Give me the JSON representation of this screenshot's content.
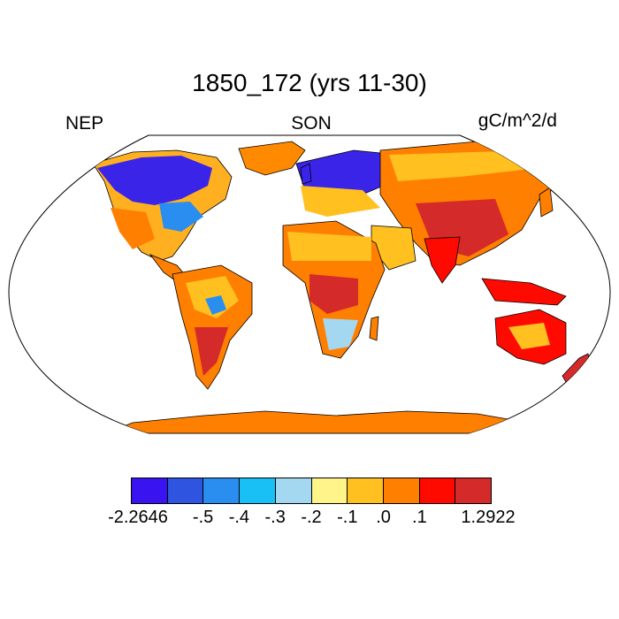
{
  "title": "1850_172 (yrs 11-30)",
  "left_label": "NEP",
  "center_label": "SON",
  "right_label": "gC/m^2/d",
  "colorbar": {
    "colors": [
      "#3a14f0",
      "#2f55e0",
      "#2a8ef0",
      "#18c0f5",
      "#a4d8f0",
      "#fff48a",
      "#ffc020",
      "#ff7f00",
      "#ff0a00",
      "#d42a2a"
    ],
    "labels": [
      "-2.2646",
      "-.5",
      "-.4",
      "-.3",
      "-.2",
      "-.1",
      ".0",
      ".1",
      "1.2922"
    ]
  },
  "map": {
    "projection": "Robinson",
    "ocean_color": "#ffffff",
    "outline_color": "#000000"
  }
}
